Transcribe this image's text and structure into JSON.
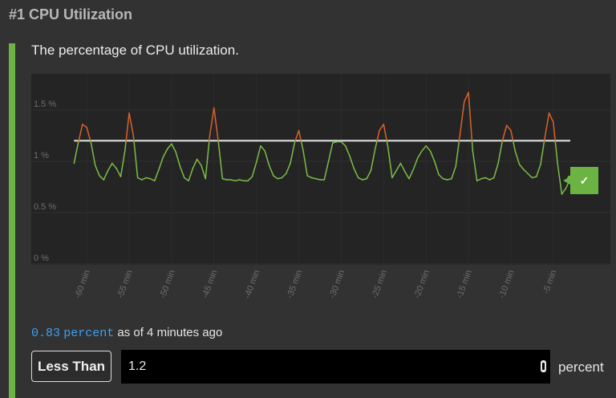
{
  "panel": {
    "title": "#1 CPU Utilization",
    "description": "The percentage of CPU utilization."
  },
  "status": {
    "value": "0.83",
    "unit": "percent",
    "suffix": "as of 4 minutes ago",
    "ok_icon": "checkmark-icon",
    "ok_glyph": "✓"
  },
  "rule": {
    "operator_label": "Less Than",
    "threshold_value": "1.2",
    "unit_label": "percent"
  },
  "colors": {
    "accent": "#6bb343",
    "normal_series": "#7bbd48",
    "breach_series": "#d9622b",
    "threshold_line": "#e8e8e8",
    "value_text": "#3d9ff0"
  },
  "chart_data": {
    "type": "line",
    "title": "",
    "xlabel": "",
    "ylabel": "",
    "ylim": [
      0,
      1.75
    ],
    "xlim": [
      -62,
      -3
    ],
    "y_ticks": [
      {
        "value": 0,
        "label": "0 %"
      },
      {
        "value": 0.5,
        "label": "0.5 %"
      },
      {
        "value": 1,
        "label": "1 %"
      },
      {
        "value": 1.5,
        "label": "1.5 %"
      }
    ],
    "x_ticks": [
      {
        "value": -60,
        "label": "-60 min"
      },
      {
        "value": -55,
        "label": "-55 min"
      },
      {
        "value": -50,
        "label": "-50 min"
      },
      {
        "value": -45,
        "label": "-45 min"
      },
      {
        "value": -40,
        "label": "-40 min"
      },
      {
        "value": -35,
        "label": "-35 min"
      },
      {
        "value": -30,
        "label": "-30 min"
      },
      {
        "value": -25,
        "label": "-25 min"
      },
      {
        "value": -20,
        "label": "-20 min"
      },
      {
        "value": -15,
        "label": "-15 min"
      },
      {
        "value": -10,
        "label": "-10 min"
      },
      {
        "value": -5,
        "label": "-5 min"
      }
    ],
    "grid": true,
    "threshold": 1.2,
    "series": [
      {
        "points": [
          [
            -61.5,
            0.98
          ],
          [
            -61,
            1.18
          ],
          [
            -60.5,
            1.36
          ],
          [
            -60,
            1.33
          ],
          [
            -59.5,
            1.18
          ],
          [
            -59,
            0.96
          ],
          [
            -58.5,
            0.86
          ],
          [
            -58,
            0.82
          ],
          [
            -57.5,
            0.91
          ],
          [
            -57,
            0.98
          ],
          [
            -56.5,
            0.93
          ],
          [
            -56,
            0.85
          ],
          [
            -55.5,
            1.1
          ],
          [
            -55,
            1.47
          ],
          [
            -54.5,
            1.25
          ],
          [
            -54,
            0.84
          ],
          [
            -53.5,
            0.82
          ],
          [
            -53,
            0.84
          ],
          [
            -52.5,
            0.83
          ],
          [
            -52,
            0.81
          ],
          [
            -51.5,
            0.92
          ],
          [
            -51,
            1.04
          ],
          [
            -50.5,
            1.12
          ],
          [
            -50,
            1.17
          ],
          [
            -49.5,
            1.09
          ],
          [
            -49,
            0.95
          ],
          [
            -48.5,
            0.84
          ],
          [
            -48,
            0.81
          ],
          [
            -47.5,
            0.93
          ],
          [
            -47,
            1.02
          ],
          [
            -46.5,
            0.96
          ],
          [
            -46,
            0.83
          ],
          [
            -45.5,
            1.25
          ],
          [
            -45,
            1.52
          ],
          [
            -44.5,
            1.2
          ],
          [
            -44,
            0.83
          ],
          [
            -43.5,
            0.82
          ],
          [
            -43,
            0.82
          ],
          [
            -42.5,
            0.81
          ],
          [
            -42,
            0.82
          ],
          [
            -41.5,
            0.81
          ],
          [
            -41,
            0.81
          ],
          [
            -40.5,
            0.85
          ],
          [
            -40,
            0.99
          ],
          [
            -39.5,
            1.15
          ],
          [
            -39,
            1.1
          ],
          [
            -38.5,
            0.96
          ],
          [
            -38,
            0.86
          ],
          [
            -37.5,
            0.83
          ],
          [
            -37,
            0.84
          ],
          [
            -36.5,
            0.88
          ],
          [
            -36,
            0.98
          ],
          [
            -35.5,
            1.18
          ],
          [
            -35,
            1.3
          ],
          [
            -34.5,
            1.11
          ],
          [
            -34,
            0.86
          ],
          [
            -33.5,
            0.84
          ],
          [
            -33,
            0.83
          ],
          [
            -32.5,
            0.82
          ],
          [
            -32,
            0.82
          ],
          [
            -31.5,
            1.0
          ],
          [
            -31,
            1.18
          ],
          [
            -30.5,
            1.19
          ],
          [
            -30,
            1.19
          ],
          [
            -29.5,
            1.15
          ],
          [
            -29,
            1.05
          ],
          [
            -28.5,
            0.93
          ],
          [
            -28,
            0.84
          ],
          [
            -27.5,
            0.82
          ],
          [
            -27,
            0.83
          ],
          [
            -26.5,
            0.91
          ],
          [
            -26,
            1.12
          ],
          [
            -25.5,
            1.3
          ],
          [
            -25,
            1.36
          ],
          [
            -24.5,
            1.14
          ],
          [
            -24,
            0.84
          ],
          [
            -23.5,
            0.91
          ],
          [
            -23,
            0.98
          ],
          [
            -22.5,
            0.9
          ],
          [
            -22,
            0.83
          ],
          [
            -21.5,
            0.92
          ],
          [
            -21,
            1.03
          ],
          [
            -20.5,
            1.1
          ],
          [
            -20,
            1.15
          ],
          [
            -19.5,
            1.1
          ],
          [
            -19,
            1.0
          ],
          [
            -18.5,
            0.87
          ],
          [
            -18,
            0.83
          ],
          [
            -17.5,
            0.82
          ],
          [
            -17,
            0.83
          ],
          [
            -16.5,
            0.95
          ],
          [
            -16,
            1.26
          ],
          [
            -15.5,
            1.58
          ],
          [
            -15,
            1.67
          ],
          [
            -14.5,
            1.1
          ],
          [
            -14,
            0.81
          ],
          [
            -13.5,
            0.83
          ],
          [
            -13,
            0.84
          ],
          [
            -12.5,
            0.82
          ],
          [
            -12,
            0.84
          ],
          [
            -11.5,
            0.98
          ],
          [
            -11,
            1.2
          ],
          [
            -10.5,
            1.35
          ],
          [
            -10,
            1.3
          ],
          [
            -9.5,
            1.1
          ],
          [
            -9,
            0.97
          ],
          [
            -8.5,
            0.92
          ],
          [
            -8,
            0.88
          ],
          [
            -7.5,
            0.84
          ],
          [
            -7,
            0.85
          ],
          [
            -6.5,
            0.97
          ],
          [
            -6,
            1.23
          ],
          [
            -5.5,
            1.47
          ],
          [
            -5,
            1.38
          ],
          [
            -4.5,
            0.98
          ],
          [
            -4,
            0.68
          ],
          [
            -3.5,
            0.74
          ],
          [
            -3,
            0.83
          ]
        ]
      }
    ]
  }
}
